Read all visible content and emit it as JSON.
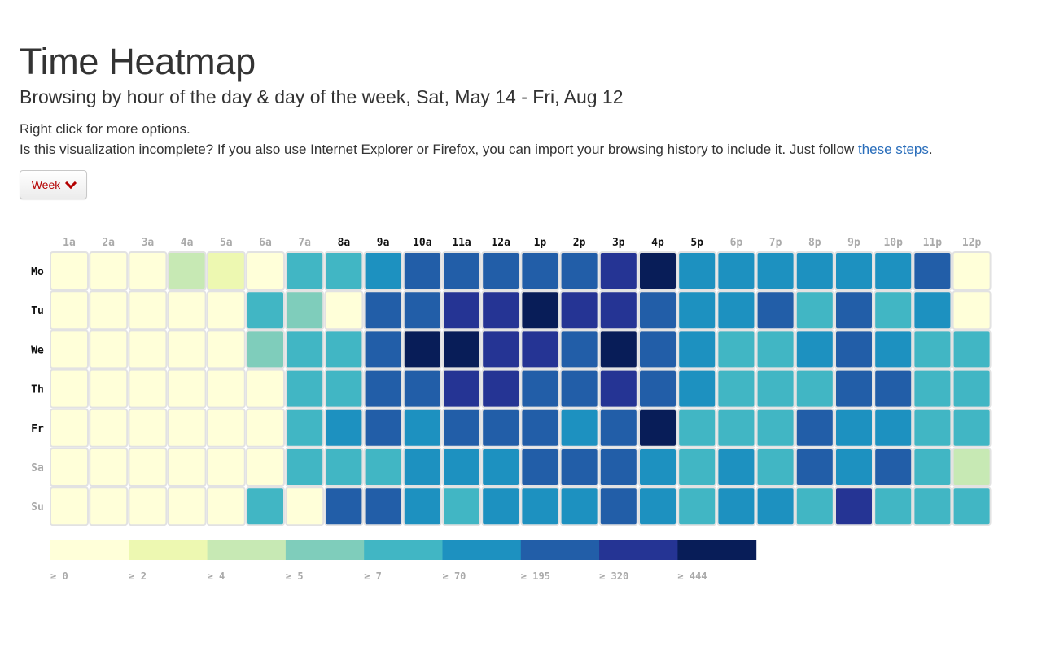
{
  "header": {
    "title": "Time Heatmap",
    "subtitle": "Browsing by hour of the day & day of the week, Sat, May 14 - Fri, Aug 12",
    "note_right_click": "Right click for more options.",
    "note_incomplete": "Is this visualization incomplete? If you also use Internet Explorer or Firefox, you can import your browsing history to include it. Just follow",
    "link_text": "these steps",
    "note_end": "."
  },
  "controls": {
    "week_button_label": "Week"
  },
  "colors": {
    "tick_active": "#111111",
    "tick_inactive": "#aaaaaa",
    "cell_border": "#e2e2e2",
    "link": "#2a6ebb",
    "button_text": "#b30000"
  },
  "chart_data": {
    "type": "heatmap",
    "hours": [
      "1a",
      "2a",
      "3a",
      "4a",
      "5a",
      "6a",
      "7a",
      "8a",
      "9a",
      "10a",
      "11a",
      "12a",
      "1p",
      "2p",
      "3p",
      "4p",
      "5p",
      "6p",
      "7p",
      "8p",
      "9p",
      "10p",
      "11p",
      "12p"
    ],
    "hours_bold": [
      false,
      false,
      false,
      false,
      false,
      false,
      false,
      true,
      true,
      true,
      true,
      true,
      true,
      true,
      true,
      true,
      true,
      false,
      false,
      false,
      false,
      false,
      false,
      false
    ],
    "days": [
      "Mo",
      "Tu",
      "We",
      "Th",
      "Fr",
      "Sa",
      "Su"
    ],
    "days_bold": [
      true,
      true,
      true,
      true,
      true,
      false,
      false
    ],
    "legend": {
      "thresholds": [
        0,
        2,
        4,
        5,
        7,
        70,
        195,
        320,
        444
      ],
      "labels": [
        "≥ 0",
        "≥ 2",
        "≥ 4",
        "≥ 5",
        "≥ 7",
        "≥ 70",
        "≥ 195",
        "≥ 320",
        "≥ 444"
      ],
      "colors": [
        "#ffffd9",
        "#edf8b1",
        "#c7e9b4",
        "#7fcdbb",
        "#41b6c4",
        "#1d91c0",
        "#225ea8",
        "#253494",
        "#081d58"
      ]
    },
    "bin_index": [
      [
        0,
        0,
        0,
        2,
        1,
        0,
        4,
        4,
        5,
        6,
        6,
        6,
        6,
        6,
        7,
        8,
        5,
        5,
        5,
        5,
        5,
        5,
        6,
        0
      ],
      [
        0,
        0,
        0,
        0,
        0,
        4,
        3,
        0,
        6,
        6,
        7,
        7,
        8,
        7,
        7,
        6,
        5,
        5,
        6,
        4,
        6,
        4,
        5,
        0
      ],
      [
        0,
        0,
        0,
        0,
        0,
        3,
        4,
        4,
        6,
        8,
        8,
        7,
        7,
        6,
        8,
        6,
        5,
        4,
        4,
        5,
        6,
        5,
        4,
        4
      ],
      [
        0,
        0,
        0,
        0,
        0,
        0,
        4,
        4,
        6,
        6,
        7,
        7,
        6,
        6,
        7,
        6,
        5,
        4,
        4,
        4,
        6,
        6,
        4,
        4
      ],
      [
        0,
        0,
        0,
        0,
        0,
        0,
        4,
        5,
        6,
        5,
        6,
        6,
        6,
        5,
        6,
        8,
        4,
        4,
        4,
        6,
        5,
        5,
        4,
        4
      ],
      [
        0,
        0,
        0,
        0,
        0,
        0,
        4,
        4,
        4,
        5,
        5,
        5,
        6,
        6,
        6,
        5,
        4,
        5,
        4,
        6,
        5,
        6,
        4,
        2
      ],
      [
        0,
        0,
        0,
        0,
        0,
        4,
        0,
        6,
        6,
        5,
        4,
        5,
        5,
        5,
        6,
        5,
        4,
        5,
        5,
        4,
        7,
        4,
        4,
        4
      ]
    ]
  }
}
